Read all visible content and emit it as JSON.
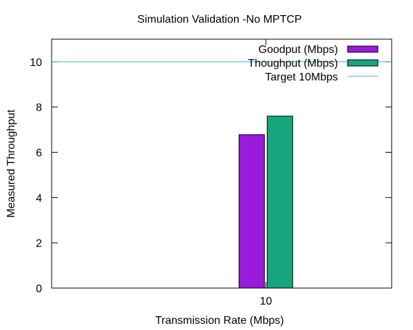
{
  "chart_data": {
    "type": "bar",
    "title": "Simulation Validation -No MPTCP",
    "xlabel": "Transmission Rate (Mbps)",
    "ylabel": "Measured Throughput",
    "categories": [
      "10"
    ],
    "series": [
      {
        "name": "Goodput (Mbps)",
        "values": [
          6.78
        ],
        "color": "#9a1adb"
      },
      {
        "name": "Thoughput (Mbps)",
        "values": [
          7.6
        ],
        "color": "#18a67e"
      }
    ],
    "reference_lines": [
      {
        "name": "Target 10Mbps",
        "y": 10,
        "color": "#4aa3d8"
      }
    ],
    "ylim": [
      0,
      11
    ],
    "yticks": [
      0,
      2,
      4,
      6,
      8,
      10
    ],
    "legend_position": "top-right",
    "grid": false
  }
}
